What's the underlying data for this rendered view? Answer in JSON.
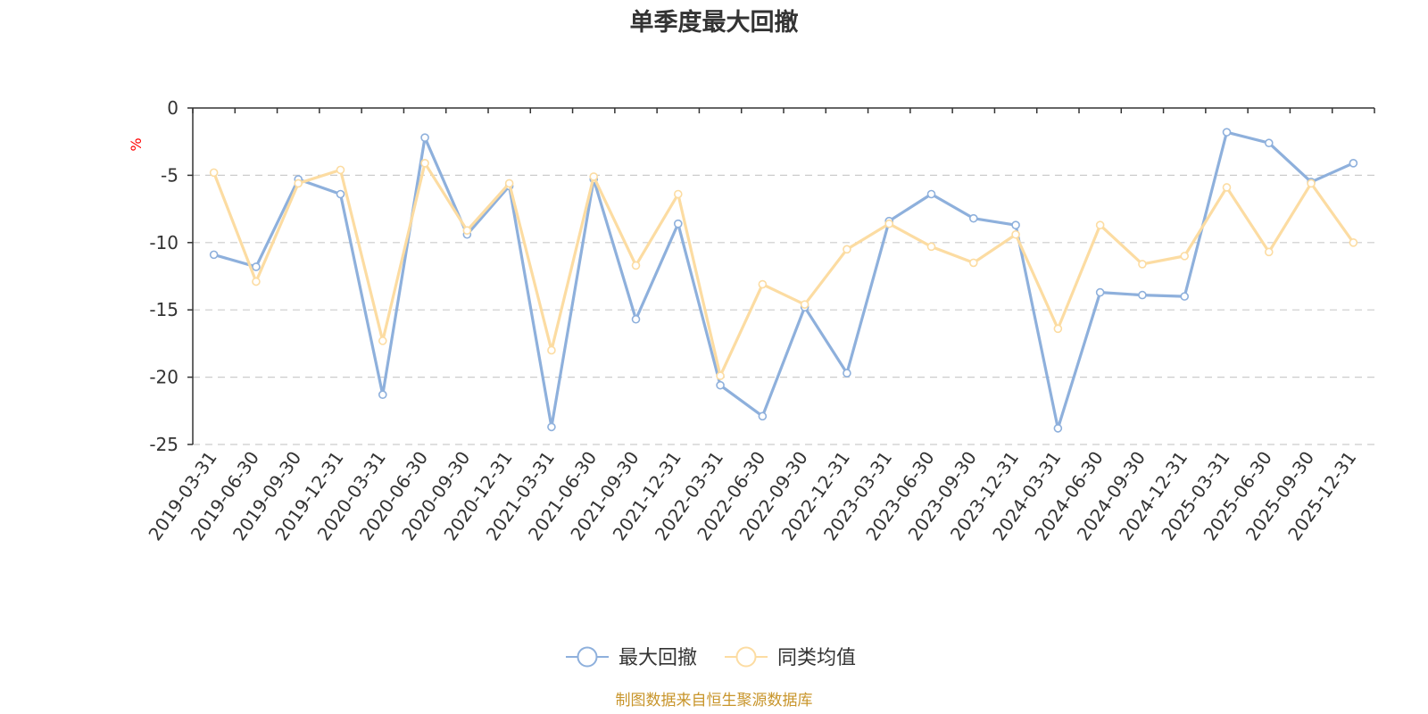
{
  "chart_data": {
    "type": "line",
    "title": "单季度最大回撤",
    "ylabel": "%",
    "ylim": [
      -25,
      0
    ],
    "yticks": [
      0,
      -5,
      -10,
      -15,
      -20,
      -25
    ],
    "categories": [
      "2019-03-31",
      "2019-06-30",
      "2019-09-30",
      "2019-12-31",
      "2020-03-31",
      "2020-06-30",
      "2020-09-30",
      "2020-12-31",
      "2021-03-31",
      "2021-06-30",
      "2021-09-30",
      "2021-12-31",
      "2022-03-31",
      "2022-06-30",
      "2022-09-30",
      "2022-12-31",
      "2023-03-31",
      "2023-06-30",
      "2023-09-30",
      "2023-12-31",
      "2024-03-31",
      "2024-06-30",
      "2024-09-30",
      "2024-12-31",
      "2025-03-31",
      "2025-06-30",
      "2025-09-30",
      "2025-12-31"
    ],
    "series": [
      {
        "name": "最大回撤",
        "color": "#8eb0dc",
        "values": [
          -10.9,
          -11.8,
          -5.3,
          -6.4,
          -21.3,
          -2.2,
          -9.4,
          -5.8,
          -23.7,
          -5.3,
          -15.7,
          -8.6,
          -20.6,
          -22.9,
          -14.8,
          -19.7,
          -8.4,
          -6.4,
          -8.2,
          -8.7,
          -23.8,
          -13.7,
          -13.9,
          -14.0,
          -1.8,
          -2.6,
          -5.5,
          -4.1
        ]
      },
      {
        "name": "同类均值",
        "color": "#fcdca2",
        "values": [
          -4.8,
          -12.9,
          -5.6,
          -4.6,
          -17.3,
          -4.1,
          -9.1,
          -5.6,
          -18.0,
          -5.1,
          -11.7,
          -6.4,
          -19.9,
          -13.1,
          -14.6,
          -10.5,
          -8.6,
          -10.3,
          -11.5,
          -9.4,
          -16.4,
          -8.7,
          -11.6,
          -11.0,
          -5.9,
          -10.7,
          -5.6,
          -10.0
        ]
      }
    ],
    "grid": true,
    "legend_position": "bottom-center"
  },
  "colors": {
    "axis": "#333333",
    "grid": "#cccccc",
    "ylabel": "#ff0000",
    "source": "#c8952b"
  },
  "source_text": "制图数据来自恒生聚源数据库"
}
